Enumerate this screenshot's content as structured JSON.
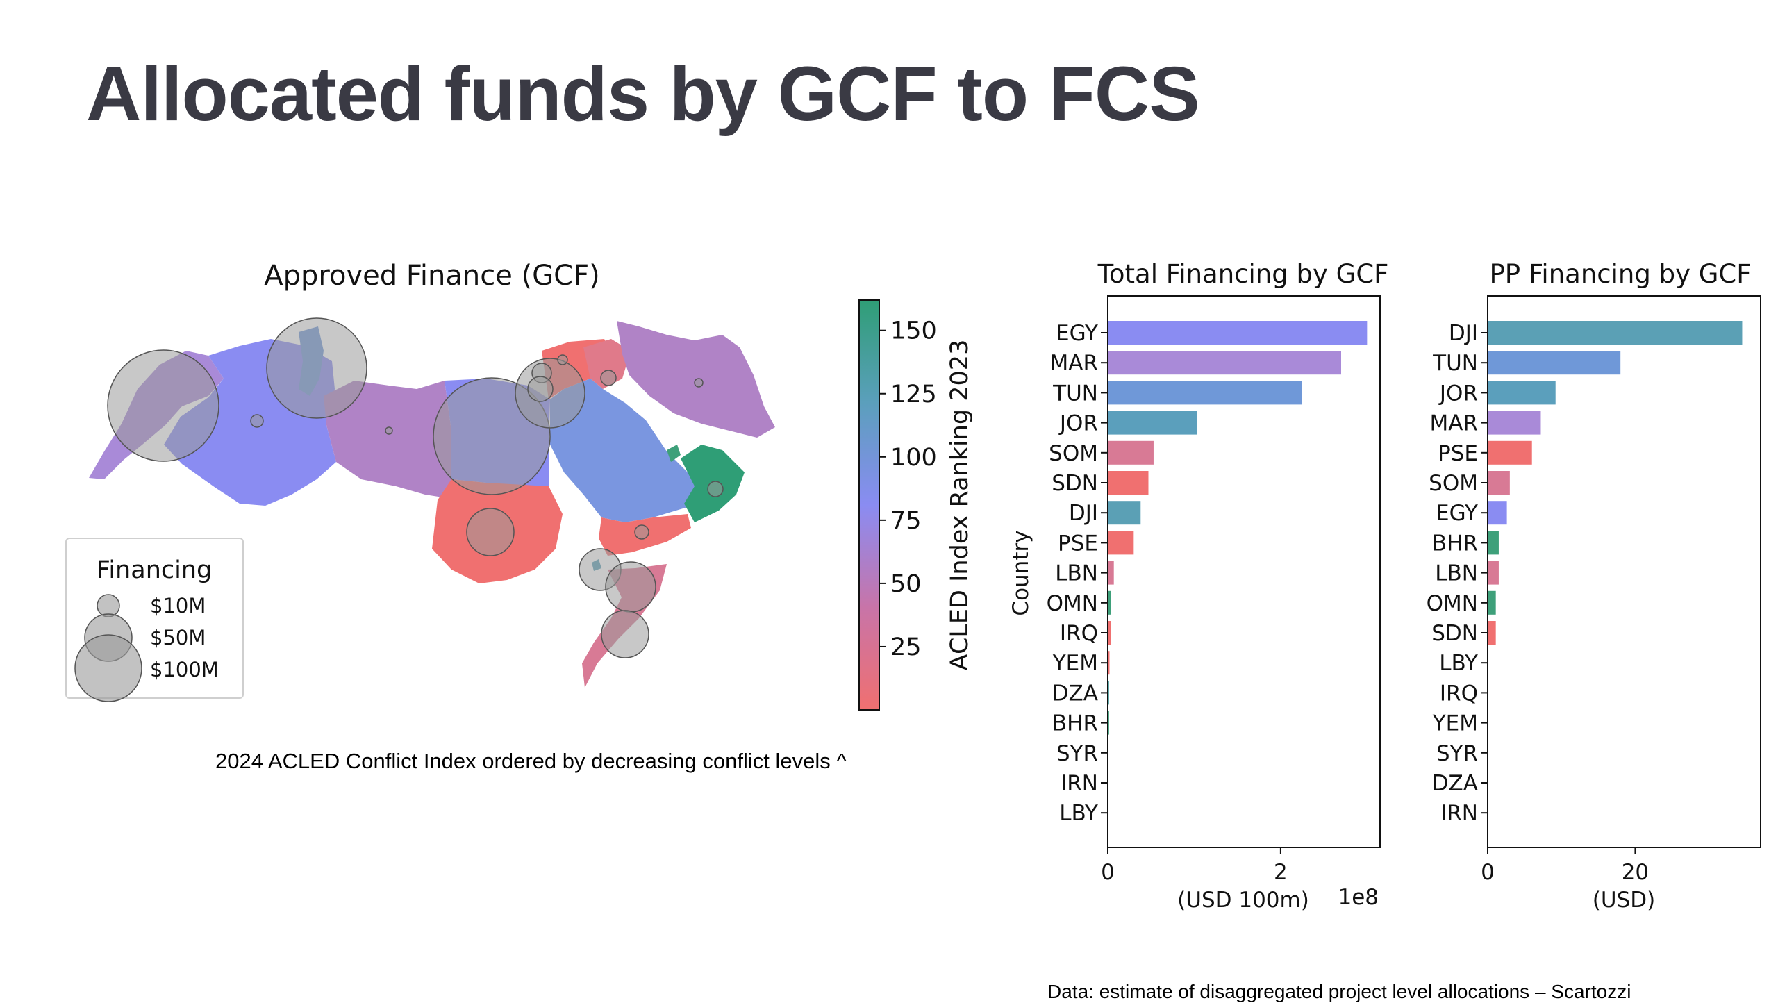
{
  "title": "Allocated funds by GCF to FCS",
  "caption": "2024 ACLED Conflict Index ordered by decreasing conflict levels ^",
  "source": "Data: estimate of disaggregated project level allocations – Scartozzi",
  "map": {
    "title": "Approved Finance (GCF)",
    "legend": {
      "title": "Financing",
      "items": [
        {
          "label": "$10M",
          "value": 10
        },
        {
          "label": "$50M",
          "value": 50
        },
        {
          "label": "$100M",
          "value": 100
        }
      ]
    },
    "colorbar": {
      "label": "ACLED Index Ranking 2023",
      "ticks": [
        25,
        50,
        75,
        100,
        125,
        150
      ],
      "range": [
        0,
        162
      ],
      "colors": [
        "#f07070",
        "#c874a8",
        "#8a8cf2",
        "#5b9fbc",
        "#2f9e76"
      ]
    }
  },
  "chart_data": [
    {
      "type": "bar",
      "orientation": "horizontal",
      "title": "Total Financing by GCF",
      "xlabel": "(USD 100m)",
      "ylabel": "Country",
      "x_multiplier": "1e8",
      "xlim": [
        0,
        3.15
      ],
      "xticks": [
        0,
        2
      ],
      "categories": [
        "EGY",
        "MAR",
        "TUN",
        "JOR",
        "SOM",
        "SDN",
        "DJI",
        "PSE",
        "LBN",
        "OMN",
        "IRQ",
        "YEM",
        "DZA",
        "BHR",
        "SYR",
        "IRN",
        "LBY"
      ],
      "values": [
        3.0,
        2.7,
        2.25,
        1.03,
        0.53,
        0.47,
        0.38,
        0.3,
        0.07,
        0.04,
        0.04,
        0.02,
        0.015,
        0.015,
        0,
        0,
        0
      ],
      "colors": [
        "#8a8cf2",
        "#a98ad8",
        "#6f98d8",
        "#5b9fbc",
        "#d87a95",
        "#f07070",
        "#5ba0b5",
        "#f07070",
        "#d87a95",
        "#3ea07a",
        "#f07070",
        "#f07070",
        "#4d9fa0",
        "#3ea07a",
        "#f07070",
        "#8a8cf2",
        "#c874a8"
      ]
    },
    {
      "type": "bar",
      "orientation": "horizontal",
      "title": "PP Financing by GCF",
      "xlabel": "(USD)",
      "xlim": [
        0,
        37
      ],
      "xticks": [
        0,
        20
      ],
      "categories": [
        "DJI",
        "TUN",
        "JOR",
        "MAR",
        "PSE",
        "SOM",
        "EGY",
        "BHR",
        "LBN",
        "OMN",
        "SDN",
        "LBY",
        "IRQ",
        "YEM",
        "SYR",
        "DZA",
        "IRN"
      ],
      "values": [
        34.5,
        18,
        9.2,
        7.2,
        6.0,
        3.0,
        2.6,
        1.5,
        1.5,
        1.1,
        1.1,
        0,
        0,
        0,
        0,
        0,
        0
      ],
      "colors": [
        "#5ba0b5",
        "#6f98d8",
        "#5b9fbc",
        "#a98ad8",
        "#f07070",
        "#d87a95",
        "#8a8cf2",
        "#3ea07a",
        "#d87a95",
        "#3ea07a",
        "#f07070",
        "#c874a8",
        "#f07070",
        "#f07070",
        "#f07070",
        "#4d9fa0",
        "#8a8cf2"
      ]
    }
  ]
}
